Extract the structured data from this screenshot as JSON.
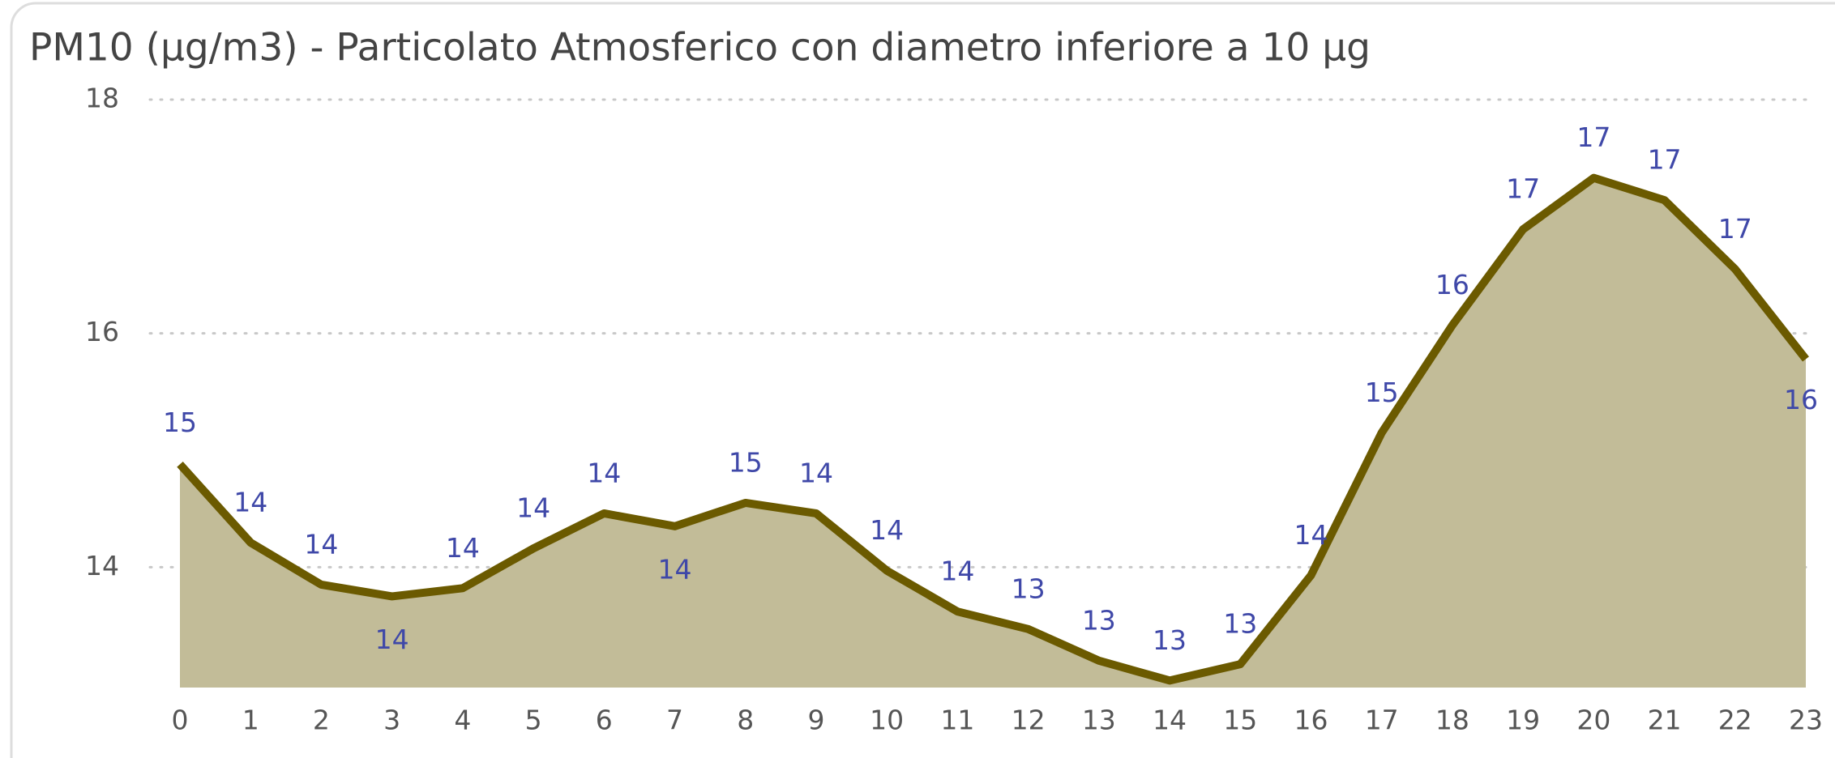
{
  "chart_data": {
    "type": "area",
    "title": "PM10 (µg/m3) - Particolato Atmosferico con diametro inferiore a 10 µg",
    "x": [
      0,
      1,
      2,
      3,
      4,
      5,
      6,
      7,
      8,
      9,
      10,
      11,
      12,
      13,
      14,
      15,
      16,
      17,
      18,
      19,
      20,
      21,
      22,
      23
    ],
    "series": [
      {
        "name": "PM10",
        "color": "#6b5a00",
        "fill": "#c2bc98",
        "values": [
          14.88,
          14.21,
          13.85,
          13.75,
          13.82,
          14.16,
          14.46,
          14.35,
          14.55,
          14.46,
          13.97,
          13.62,
          13.47,
          13.2,
          13.03,
          13.17,
          13.93,
          15.15,
          16.07,
          16.89,
          17.33,
          17.14,
          16.55,
          15.78
        ],
        "value_labels": [
          "15",
          "14",
          "14",
          "14",
          "14",
          "14",
          "14",
          "14",
          "15",
          "14",
          "14",
          "14",
          "13",
          "13",
          "13",
          "13",
          "14",
          "15",
          "16",
          "17",
          "17",
          "17",
          "17",
          "16"
        ]
      }
    ],
    "xlim": [
      0,
      23
    ],
    "xticks": [
      0,
      1,
      2,
      3,
      4,
      5,
      6,
      7,
      8,
      9,
      10,
      11,
      12,
      13,
      14,
      15,
      16,
      17,
      18,
      19,
      20,
      21,
      22,
      23
    ],
    "ylim": [
      12.97,
      18
    ],
    "yticks": [
      14,
      16,
      18
    ],
    "grid": true,
    "label_color": "#3f48a8"
  }
}
